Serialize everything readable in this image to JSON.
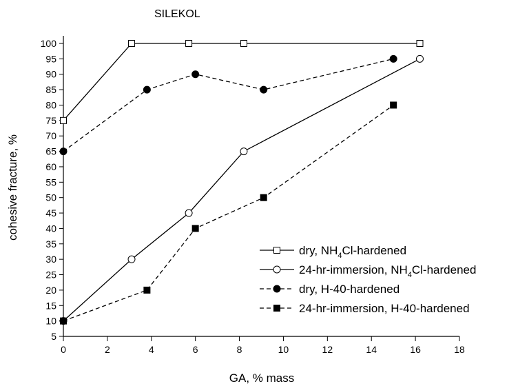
{
  "chart_data": {
    "type": "line",
    "title": "SILEKOL",
    "xlabel": "GA, % mass",
    "ylabel": "cohesive fracture, %",
    "xlim": [
      0,
      18
    ],
    "ylim": [
      5,
      100
    ],
    "x_ticks": [
      0,
      2,
      4,
      6,
      8,
      10,
      12,
      14,
      16,
      18
    ],
    "y_ticks": [
      5,
      10,
      15,
      20,
      25,
      30,
      35,
      40,
      45,
      50,
      55,
      60,
      65,
      70,
      75,
      80,
      85,
      90,
      95,
      100
    ],
    "grid": false,
    "legend_position": "bottom-right",
    "series": [
      {
        "legend_prefix": "dry, NH",
        "legend_sub": "4",
        "legend_suffix": "Cl-hardened",
        "marker": "open-square",
        "line": "solid",
        "x": [
          0,
          3.1,
          5.7,
          8.2,
          16.2
        ],
        "y": [
          75,
          100,
          100,
          100,
          100
        ]
      },
      {
        "legend_prefix": "24-hr-immersion, NH",
        "legend_sub": "4",
        "legend_suffix": "Cl-hardened",
        "marker": "open-circle",
        "line": "solid",
        "x": [
          0,
          3.1,
          5.7,
          8.2,
          16.2
        ],
        "y": [
          10,
          30,
          45,
          65,
          95
        ]
      },
      {
        "legend_prefix": "dry, H-40-hardened",
        "legend_sub": "",
        "legend_suffix": "",
        "marker": "filled-circle",
        "line": "dashed",
        "x": [
          0,
          3.8,
          6,
          9.1,
          15
        ],
        "y": [
          65,
          85,
          90,
          85,
          95
        ]
      },
      {
        "legend_prefix": "24-hr-immersion, H-40-hardened",
        "legend_sub": "",
        "legend_suffix": "",
        "marker": "filled-square",
        "line": "dashed",
        "x": [
          0,
          3.8,
          6,
          9.1,
          15
        ],
        "y": [
          10,
          20,
          40,
          50,
          80
        ]
      }
    ]
  }
}
